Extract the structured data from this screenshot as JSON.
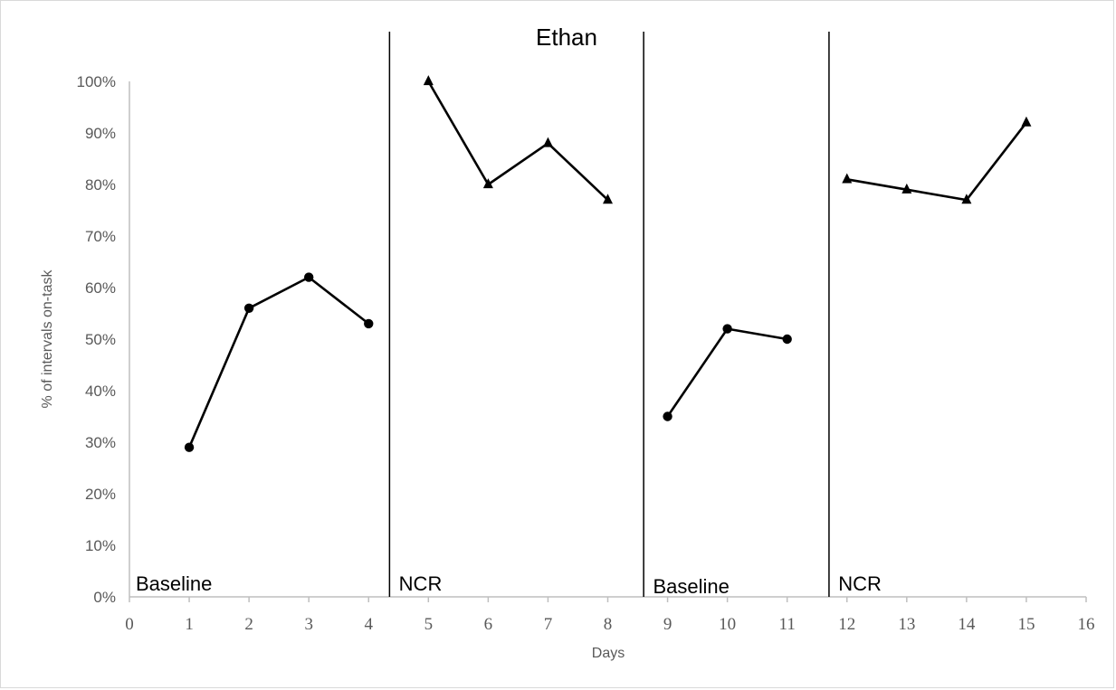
{
  "chart_data": {
    "type": "line",
    "title": "Ethan",
    "xlabel": "Days",
    "ylabel": "% of intervals on-task",
    "xlim": [
      0,
      16
    ],
    "ylim": [
      0,
      100
    ],
    "x_ticks": [
      "0",
      "1",
      "2",
      "3",
      "4",
      "5",
      "6",
      "7",
      "8",
      "9",
      "10",
      "11",
      "12",
      "13",
      "14",
      "15",
      "16"
    ],
    "y_ticks": [
      "0%",
      "10%",
      "20%",
      "30%",
      "40%",
      "50%",
      "60%",
      "70%",
      "80%",
      "90%",
      "100%"
    ],
    "phase_change_lines_x": [
      4.35,
      8.6,
      11.7
    ],
    "phases": [
      {
        "label": "Baseline",
        "x": 0
      },
      {
        "label": "NCR",
        "x": 4.4
      },
      {
        "label": "Baseline",
        "x": 8.65
      },
      {
        "label": "NCR",
        "x": 11.75
      }
    ],
    "series": [
      {
        "marker": "circle",
        "x": [
          1,
          2,
          3,
          4
        ],
        "values": [
          29,
          56,
          62,
          53
        ]
      },
      {
        "marker": "triangle",
        "x": [
          5,
          6,
          7,
          8
        ],
        "values": [
          100,
          80,
          88,
          77
        ]
      },
      {
        "marker": "circle",
        "x": [
          9,
          10,
          11
        ],
        "values": [
          35,
          52,
          50
        ]
      },
      {
        "marker": "triangle",
        "x": [
          12,
          13,
          14,
          15
        ],
        "values": [
          81,
          79,
          77,
          92
        ]
      }
    ],
    "colors": {
      "line": "#000000",
      "axis": "#bfbfbf",
      "tick_text": "#595959"
    }
  }
}
